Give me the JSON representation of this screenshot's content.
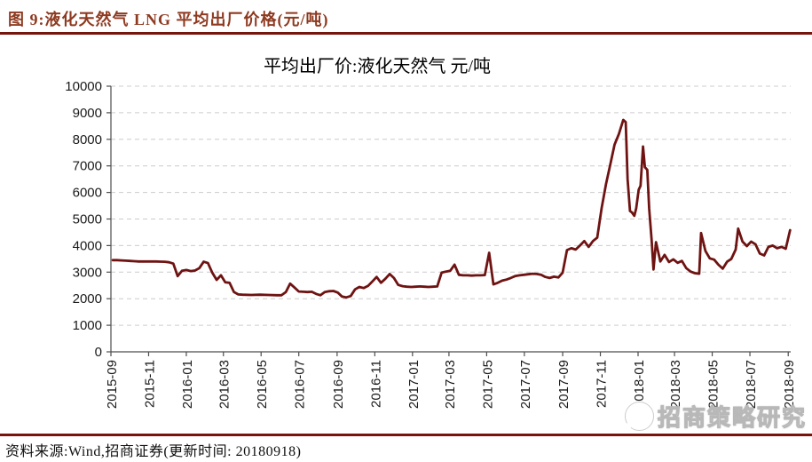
{
  "figure": {
    "header": "图 9:液化天然气 LNG 平均出厂价格(元/吨)",
    "source": "资料来源:Wind,招商证券(更新时间: 20180918)",
    "watermark": "招商策略研究"
  },
  "colors": {
    "line": "#6e1312",
    "grid": "#cccccc",
    "axis": "#4d4d4d",
    "tick_text": "#1a1a1a",
    "rule": "#77150d",
    "header_text": "#8e3a20"
  },
  "chart_data": {
    "type": "line",
    "title": "平均出厂价:液化天然气 元/吨",
    "xlabel": "",
    "ylabel": "元/吨",
    "ylim": [
      0,
      10000
    ],
    "y_ticks": [
      0,
      1000,
      2000,
      3000,
      4000,
      5000,
      6000,
      7000,
      8000,
      9000,
      10000
    ],
    "grid": "horizontal-dashed",
    "legend": "none",
    "x_domain": [
      "2015-09-01",
      "2018-09-05"
    ],
    "x_ticks": [
      "2015-09",
      "2015-11",
      "2016-01",
      "2016-03",
      "2016-05",
      "2016-07",
      "2016-09",
      "2016-11",
      "2017-01",
      "2017-03",
      "2017-05",
      "2017-07",
      "2017-09",
      "2017-11",
      "2018-01",
      "2018-03",
      "2018-05",
      "2018-07",
      "2018-09"
    ],
    "series": [
      {
        "name": "平均出厂价:液化天然气(元/吨)",
        "color": "#6e1312",
        "points": [
          [
            "2015-09-04",
            3450
          ],
          [
            "2015-09-11",
            3450
          ],
          [
            "2015-09-18",
            3440
          ],
          [
            "2015-09-25",
            3430
          ],
          [
            "2015-10-02",
            3420
          ],
          [
            "2015-10-09",
            3410
          ],
          [
            "2015-10-16",
            3400
          ],
          [
            "2015-10-23",
            3400
          ],
          [
            "2015-10-30",
            3400
          ],
          [
            "2015-11-06",
            3400
          ],
          [
            "2015-11-13",
            3400
          ],
          [
            "2015-11-20",
            3395
          ],
          [
            "2015-11-27",
            3390
          ],
          [
            "2015-12-04",
            3370
          ],
          [
            "2015-12-11",
            3320
          ],
          [
            "2015-12-18",
            2850
          ],
          [
            "2015-12-25",
            3050
          ],
          [
            "2016-01-01",
            3080
          ],
          [
            "2016-01-08",
            3040
          ],
          [
            "2016-01-15",
            3060
          ],
          [
            "2016-01-22",
            3150
          ],
          [
            "2016-01-29",
            3390
          ],
          [
            "2016-02-05",
            3340
          ],
          [
            "2016-02-12",
            2980
          ],
          [
            "2016-02-19",
            2710
          ],
          [
            "2016-02-26",
            2880
          ],
          [
            "2016-03-04",
            2620
          ],
          [
            "2016-03-11",
            2600
          ],
          [
            "2016-03-18",
            2250
          ],
          [
            "2016-03-25",
            2160
          ],
          [
            "2016-04-01",
            2150
          ],
          [
            "2016-04-15",
            2140
          ],
          [
            "2016-04-29",
            2150
          ],
          [
            "2016-05-13",
            2140
          ],
          [
            "2016-05-27",
            2130
          ],
          [
            "2016-06-03",
            2130
          ],
          [
            "2016-06-10",
            2250
          ],
          [
            "2016-06-17",
            2570
          ],
          [
            "2016-06-24",
            2420
          ],
          [
            "2016-07-01",
            2270
          ],
          [
            "2016-07-08",
            2260
          ],
          [
            "2016-07-15",
            2250
          ],
          [
            "2016-07-22",
            2260
          ],
          [
            "2016-07-29",
            2180
          ],
          [
            "2016-08-05",
            2130
          ],
          [
            "2016-08-12",
            2250
          ],
          [
            "2016-08-19",
            2280
          ],
          [
            "2016-08-26",
            2290
          ],
          [
            "2016-09-02",
            2230
          ],
          [
            "2016-09-09",
            2080
          ],
          [
            "2016-09-16",
            2050
          ],
          [
            "2016-09-23",
            2100
          ],
          [
            "2016-09-30",
            2350
          ],
          [
            "2016-10-07",
            2440
          ],
          [
            "2016-10-14",
            2400
          ],
          [
            "2016-10-21",
            2480
          ],
          [
            "2016-10-28",
            2650
          ],
          [
            "2016-11-04",
            2820
          ],
          [
            "2016-11-11",
            2600
          ],
          [
            "2016-11-18",
            2750
          ],
          [
            "2016-11-25",
            2930
          ],
          [
            "2016-12-02",
            2780
          ],
          [
            "2016-12-09",
            2520
          ],
          [
            "2016-12-16",
            2470
          ],
          [
            "2016-12-23",
            2450
          ],
          [
            "2016-12-30",
            2440
          ],
          [
            "2017-01-06",
            2450
          ],
          [
            "2017-01-13",
            2460
          ],
          [
            "2017-01-20",
            2450
          ],
          [
            "2017-01-27",
            2440
          ],
          [
            "2017-02-03",
            2450
          ],
          [
            "2017-02-10",
            2460
          ],
          [
            "2017-02-17",
            2980
          ],
          [
            "2017-02-24",
            3020
          ],
          [
            "2017-03-03",
            3050
          ],
          [
            "2017-03-10",
            3280
          ],
          [
            "2017-03-17",
            2900
          ],
          [
            "2017-03-24",
            2880
          ],
          [
            "2017-03-31",
            2880
          ],
          [
            "2017-04-07",
            2870
          ],
          [
            "2017-04-14",
            2880
          ],
          [
            "2017-04-21",
            2880
          ],
          [
            "2017-04-28",
            2890
          ],
          [
            "2017-05-05",
            3730
          ],
          [
            "2017-05-12",
            2540
          ],
          [
            "2017-05-19",
            2600
          ],
          [
            "2017-05-26",
            2680
          ],
          [
            "2017-06-02",
            2720
          ],
          [
            "2017-06-09",
            2780
          ],
          [
            "2017-06-16",
            2850
          ],
          [
            "2017-06-23",
            2880
          ],
          [
            "2017-06-30",
            2900
          ],
          [
            "2017-07-07",
            2920
          ],
          [
            "2017-07-14",
            2940
          ],
          [
            "2017-07-21",
            2930
          ],
          [
            "2017-07-28",
            2900
          ],
          [
            "2017-08-04",
            2820
          ],
          [
            "2017-08-11",
            2780
          ],
          [
            "2017-08-18",
            2830
          ],
          [
            "2017-08-25",
            2800
          ],
          [
            "2017-09-01",
            2980
          ],
          [
            "2017-09-08",
            3830
          ],
          [
            "2017-09-15",
            3900
          ],
          [
            "2017-09-22",
            3850
          ],
          [
            "2017-09-29",
            4000
          ],
          [
            "2017-10-06",
            4170
          ],
          [
            "2017-10-13",
            3950
          ],
          [
            "2017-10-20",
            4170
          ],
          [
            "2017-10-27",
            4300
          ],
          [
            "2017-11-03",
            5400
          ],
          [
            "2017-11-10",
            6300
          ],
          [
            "2017-11-17",
            7050
          ],
          [
            "2017-11-24",
            7800
          ],
          [
            "2017-12-01",
            8200
          ],
          [
            "2017-12-08",
            8730
          ],
          [
            "2017-12-12",
            8650
          ],
          [
            "2017-12-15",
            6500
          ],
          [
            "2017-12-19",
            5300
          ],
          [
            "2017-12-22",
            5250
          ],
          [
            "2017-12-26",
            5120
          ],
          [
            "2017-12-29",
            5400
          ],
          [
            "2018-01-02",
            6100
          ],
          [
            "2018-01-05",
            6250
          ],
          [
            "2018-01-09",
            7730
          ],
          [
            "2018-01-12",
            6950
          ],
          [
            "2018-01-16",
            6850
          ],
          [
            "2018-01-19",
            5400
          ],
          [
            "2018-01-23",
            4200
          ],
          [
            "2018-01-26",
            3100
          ],
          [
            "2018-01-30",
            4130
          ],
          [
            "2018-02-06",
            3400
          ],
          [
            "2018-02-13",
            3650
          ],
          [
            "2018-02-20",
            3380
          ],
          [
            "2018-02-27",
            3480
          ],
          [
            "2018-03-06",
            3350
          ],
          [
            "2018-03-13",
            3420
          ],
          [
            "2018-03-20",
            3150
          ],
          [
            "2018-03-27",
            3020
          ],
          [
            "2018-04-03",
            2960
          ],
          [
            "2018-04-10",
            2940
          ],
          [
            "2018-04-13",
            4470
          ],
          [
            "2018-04-20",
            3800
          ],
          [
            "2018-04-27",
            3520
          ],
          [
            "2018-05-04",
            3470
          ],
          [
            "2018-05-11",
            3280
          ],
          [
            "2018-05-18",
            3130
          ],
          [
            "2018-05-25",
            3390
          ],
          [
            "2018-06-01",
            3500
          ],
          [
            "2018-06-08",
            3850
          ],
          [
            "2018-06-12",
            4640
          ],
          [
            "2018-06-19",
            4150
          ],
          [
            "2018-06-26",
            3980
          ],
          [
            "2018-07-03",
            4150
          ],
          [
            "2018-07-10",
            4050
          ],
          [
            "2018-07-17",
            3700
          ],
          [
            "2018-07-24",
            3630
          ],
          [
            "2018-07-31",
            3950
          ],
          [
            "2018-08-07",
            4000
          ],
          [
            "2018-08-14",
            3900
          ],
          [
            "2018-08-21",
            3950
          ],
          [
            "2018-08-28",
            3880
          ],
          [
            "2018-09-04",
            4580
          ]
        ]
      }
    ]
  }
}
